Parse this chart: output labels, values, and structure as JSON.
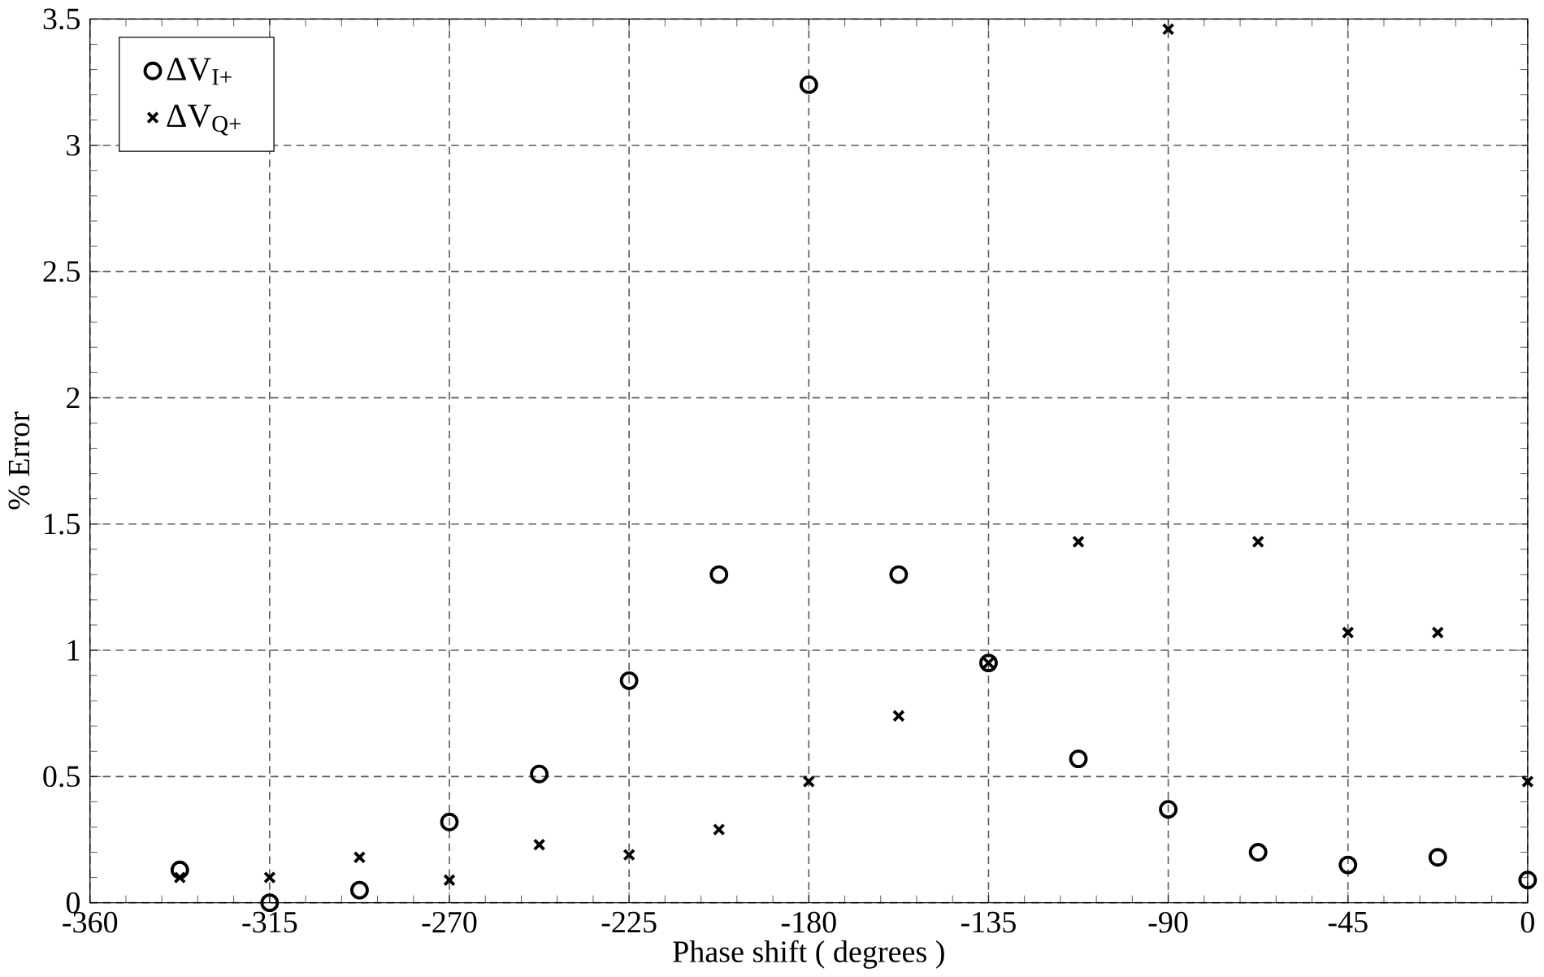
{
  "chart_data": {
    "type": "scatter",
    "xlabel": "Phase shift ( degrees )",
    "ylabel": "% Error",
    "x": [
      -337.5,
      -315,
      -292.5,
      -270,
      -247.5,
      -225,
      -202.5,
      -180,
      -157.5,
      -135,
      -112.5,
      -90,
      -67.5,
      -45,
      -22.5,
      0
    ],
    "series": [
      {
        "name": "ΔV$_{I+}$",
        "color": "#000000",
        "marker": "circle",
        "values": [
          0.13,
          0.0,
          0.05,
          0.32,
          0.51,
          0.88,
          1.3,
          3.24,
          1.3,
          0.95,
          0.57,
          0.37,
          0.2,
          0.15,
          0.18,
          0.09
        ]
      },
      {
        "name": "ΔV$_{Q+}$",
        "color": "#000000",
        "marker": "cross",
        "values": [
          0.1,
          0.1,
          0.18,
          0.09,
          0.23,
          0.19,
          0.29,
          0.48,
          0.74,
          0.95,
          1.43,
          3.46,
          1.43,
          1.07,
          1.07,
          0.48
        ]
      }
    ],
    "xlim": [
      -360,
      0
    ],
    "xticks": [
      -360,
      -315,
      -270,
      -225,
      -180,
      -135,
      -90,
      -45,
      0
    ],
    "ylim": [
      0,
      3.5
    ],
    "yticks": [
      0,
      0.5,
      1,
      1.5,
      2,
      2.5,
      3,
      3.5
    ],
    "grid": true,
    "legend": "top left"
  }
}
